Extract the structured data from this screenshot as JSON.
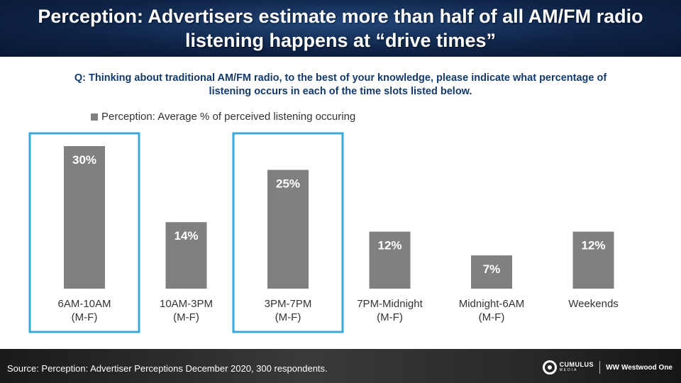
{
  "title": "Perception: Advertisers estimate more than half of all AM/FM radio listening happens at “drive times”",
  "question": "Q: Thinking about traditional AM/FM radio, to the best of your knowledge, please indicate what percentage of listening occurs in each of the time slots listed below.",
  "colors": {
    "bar": "#808080",
    "highlight_border": "#3aa8d8",
    "data_label": "#ffffff",
    "title_bg": "#0f2447"
  },
  "chart_data": {
    "type": "bar",
    "categories": [
      [
        "6AM-10AM",
        "(M-F)"
      ],
      [
        "10AM-3PM",
        "(M-F)"
      ],
      [
        "3PM-7PM",
        "(M-F)"
      ],
      [
        "7PM-Midnight",
        "(M-F)"
      ],
      [
        "Midnight-6AM",
        "(M-F)"
      ],
      [
        "Weekends"
      ]
    ],
    "series": [
      {
        "name": "Perception: Average % of perceived listening occuring",
        "values": [
          30,
          14,
          25,
          12,
          7,
          12
        ],
        "labels": [
          "30%",
          "14%",
          "25%",
          "12%",
          "7%",
          "12%"
        ]
      }
    ],
    "highlighted_categories": [
      0,
      2
    ],
    "ylim": [
      0,
      30
    ],
    "grid": false,
    "legend_position": "top-left"
  },
  "footer": {
    "source": "Source: Perception: Advertiser Perceptions December 2020, 300 respondents.",
    "logo_cumulus_name": "CUMULUS",
    "logo_cumulus_sub": "MEDIA",
    "logo_ww_icon": "WW",
    "logo_ww_name": "Westwood One"
  }
}
